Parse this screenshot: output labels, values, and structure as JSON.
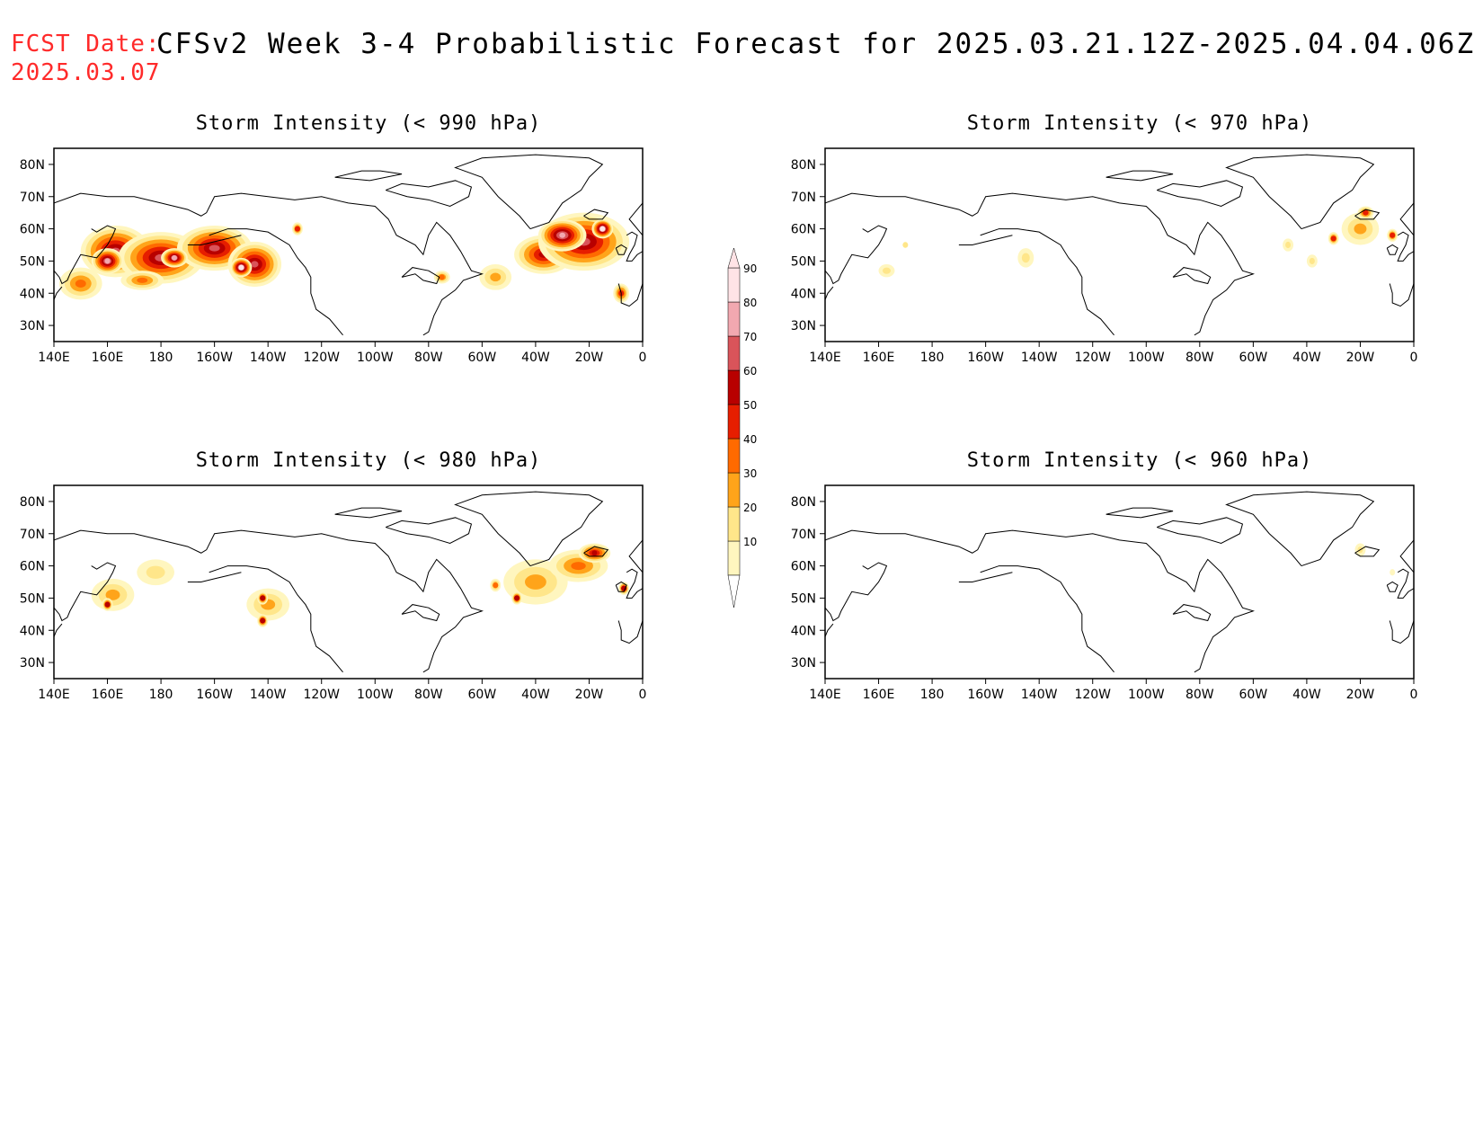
{
  "header": {
    "fcst_label": "FCST Date:",
    "fcst_date": "2025.03.07",
    "title": "CFSv2 Week 3-4 Probabilistic Forecast for 2025.03.21.12Z-2025.04.04.06Z"
  },
  "axes": {
    "lon_ticks": [
      "140E",
      "160E",
      "180",
      "160W",
      "140W",
      "120W",
      "100W",
      "80W",
      "60W",
      "40W",
      "20W",
      "0"
    ],
    "lon_values": [
      140,
      160,
      180,
      200,
      220,
      240,
      260,
      280,
      300,
      320,
      340,
      360
    ],
    "lat_ticks": [
      "80N",
      "70N",
      "60N",
      "50N",
      "40N",
      "30N"
    ],
    "lat_values": [
      80,
      70,
      60,
      50,
      40,
      30
    ],
    "lon_range": [
      140,
      360
    ],
    "lat_range": [
      25,
      85
    ]
  },
  "colorbar": {
    "levels": [
      "10",
      "20",
      "30",
      "40",
      "50",
      "60",
      "70",
      "80",
      "90"
    ],
    "colors": [
      "#fff6bf",
      "#ffe68a",
      "#ffa41a",
      "#ff6a00",
      "#e61e00",
      "#b80000",
      "#d9545a",
      "#f2a8b0",
      "#ffe3e6"
    ]
  },
  "panels": [
    {
      "title": "Storm Intensity (< 990 hPa)",
      "blobs": [
        {
          "lon": 163,
          "lat": 53,
          "rlon": 13,
          "rlat": 8,
          "level": 6
        },
        {
          "lon": 180,
          "lat": 51,
          "rlon": 16,
          "rlat": 8,
          "level": 6
        },
        {
          "lon": 200,
          "lat": 54,
          "rlon": 14,
          "rlat": 7,
          "level": 6
        },
        {
          "lon": 215,
          "lat": 49,
          "rlon": 10,
          "rlat": 7,
          "level": 6
        },
        {
          "lon": 150,
          "lat": 43,
          "rlon": 8,
          "rlat": 5,
          "level": 3
        },
        {
          "lon": 173,
          "lat": 44,
          "rlon": 8,
          "rlat": 3,
          "level": 3
        },
        {
          "lon": 160,
          "lat": 50,
          "rlon": 6,
          "rlat": 4,
          "level": 7
        },
        {
          "lon": 185,
          "lat": 51,
          "rlon": 5,
          "rlat": 3,
          "level": 7
        },
        {
          "lon": 210,
          "lat": 48,
          "rlon": 4,
          "rlat": 3,
          "level": 8
        },
        {
          "lon": 231,
          "lat": 60,
          "rlon": 2,
          "rlat": 2,
          "level": 4
        },
        {
          "lon": 323,
          "lat": 52,
          "rlon": 11,
          "rlat": 6,
          "level": 5
        },
        {
          "lon": 338,
          "lat": 56,
          "rlon": 17,
          "rlat": 9,
          "level": 6
        },
        {
          "lon": 330,
          "lat": 58,
          "rlon": 9,
          "rlat": 5,
          "level": 7
        },
        {
          "lon": 345,
          "lat": 60,
          "rlon": 4,
          "rlat": 3,
          "level": 8
        },
        {
          "lon": 305,
          "lat": 45,
          "rlon": 6,
          "rlat": 4,
          "level": 2
        },
        {
          "lon": 285,
          "lat": 45,
          "rlon": 3,
          "rlat": 2,
          "level": 3
        },
        {
          "lon": 352,
          "lat": 40,
          "rlon": 3,
          "rlat": 3,
          "level": 4
        }
      ]
    },
    {
      "title": "Storm Intensity (< 970 hPa)",
      "blobs": [
        {
          "lon": 340,
          "lat": 60,
          "rlon": 7,
          "rlat": 5,
          "level": 2
        },
        {
          "lon": 342,
          "lat": 65,
          "rlon": 3,
          "rlat": 2,
          "level": 4
        },
        {
          "lon": 330,
          "lat": 57,
          "rlon": 2,
          "rlat": 2,
          "level": 4
        },
        {
          "lon": 352,
          "lat": 58,
          "rlon": 2,
          "rlat": 2,
          "level": 4
        },
        {
          "lon": 313,
          "lat": 55,
          "rlon": 2,
          "rlat": 2,
          "level": 1
        },
        {
          "lon": 322,
          "lat": 50,
          "rlon": 2,
          "rlat": 2,
          "level": 1
        },
        {
          "lon": 215,
          "lat": 51,
          "rlon": 3,
          "rlat": 3,
          "level": 1
        },
        {
          "lon": 163,
          "lat": 47,
          "rlon": 3,
          "rlat": 2,
          "level": 1
        },
        {
          "lon": 170,
          "lat": 55,
          "rlon": 1,
          "rlat": 1,
          "level": 1
        }
      ]
    },
    {
      "title": "Storm Intensity (< 980 hPa)",
      "blobs": [
        {
          "lon": 162,
          "lat": 51,
          "rlon": 8,
          "rlat": 5,
          "level": 2
        },
        {
          "lon": 160,
          "lat": 48,
          "rlon": 2,
          "rlat": 2,
          "level": 5
        },
        {
          "lon": 178,
          "lat": 58,
          "rlon": 7,
          "rlat": 4,
          "level": 1
        },
        {
          "lon": 220,
          "lat": 48,
          "rlon": 8,
          "rlat": 5,
          "level": 2
        },
        {
          "lon": 218,
          "lat": 50,
          "rlon": 2,
          "rlat": 2,
          "level": 5
        },
        {
          "lon": 218,
          "lat": 43,
          "rlon": 2,
          "rlat": 2,
          "level": 5
        },
        {
          "lon": 320,
          "lat": 55,
          "rlon": 12,
          "rlat": 7,
          "level": 2
        },
        {
          "lon": 336,
          "lat": 60,
          "rlon": 11,
          "rlat": 5,
          "level": 3
        },
        {
          "lon": 342,
          "lat": 64,
          "rlon": 6,
          "rlat": 3,
          "level": 5
        },
        {
          "lon": 313,
          "lat": 50,
          "rlon": 2,
          "rlat": 2,
          "level": 5
        },
        {
          "lon": 353,
          "lat": 53,
          "rlon": 2,
          "rlat": 2,
          "level": 5
        },
        {
          "lon": 305,
          "lat": 54,
          "rlon": 2,
          "rlat": 2,
          "level": 3
        }
      ]
    },
    {
      "title": "Storm Intensity (< 960 hPa)",
      "blobs": [
        {
          "lon": 340,
          "lat": 65,
          "rlon": 2,
          "rlat": 2,
          "level": 1
        },
        {
          "lon": 352,
          "lat": 58,
          "rlon": 1,
          "rlat": 1,
          "level": 0
        }
      ]
    }
  ]
}
